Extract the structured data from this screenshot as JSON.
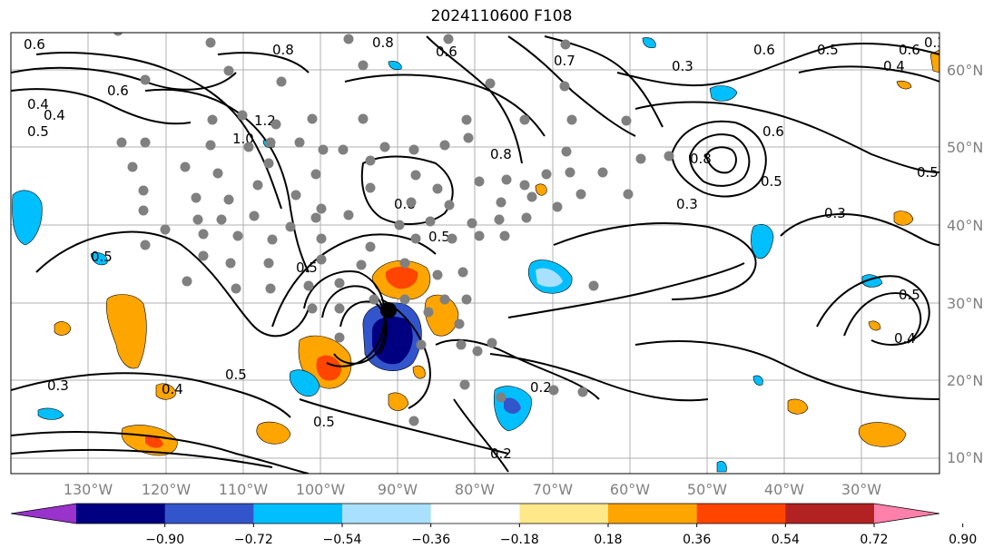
{
  "title": "2024110600 F108",
  "lat_labels": [
    "60°N",
    "50°N",
    "40°N",
    "30°N",
    "20°N",
    "10°N"
  ],
  "lon_labels": [
    "130°W",
    "120°W",
    "110°W",
    "100°W",
    "90°W",
    "80°W",
    "70°W",
    "60°W",
    "50°W",
    "40°W",
    "30°W"
  ],
  "colorbar": {
    "colors": [
      "#9933cc",
      "#000080",
      "#3355cc",
      "#00bfff",
      "#aae0ff",
      "#ffffff",
      "#ffe88a",
      "#ffa500",
      "#ff4500",
      "#b22222",
      "#ff80aa"
    ],
    "labels": [
      "−0.90",
      "−0.72",
      "−0.54",
      "−0.36",
      "−0.18",
      "0.18",
      "0.36",
      "0.54",
      "0.72",
      "0.90"
    ]
  },
  "contour_labels": [
    "0.3",
    "0.4",
    "0.5",
    "0.6",
    "0.8",
    "1.0",
    "0.5",
    "0.8",
    "0.5",
    "0.6",
    "0.8",
    "0.3",
    "0.5",
    "0.4",
    "0.5",
    "0.6",
    "0.3",
    "0.4",
    "0.5",
    "0.2",
    "0.2",
    "0.4",
    "0.5",
    "0.3",
    "0.5",
    "0.6",
    "0.7",
    "0.8",
    "1.2",
    "0.5",
    "0.6",
    "0.4",
    "0.5",
    "0.6",
    "0.8",
    "0.3"
  ]
}
